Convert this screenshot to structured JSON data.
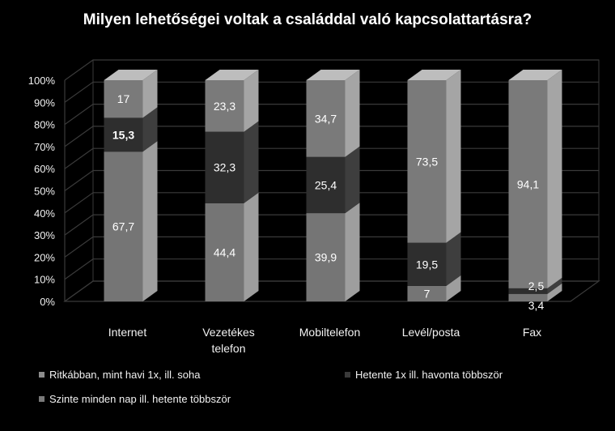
{
  "chart_data": {
    "type": "bar",
    "stacked": true,
    "percent_stacked": true,
    "three_d": true,
    "title": "Milyen lehetőségei voltak a családdal való kapcsolattartásra?",
    "categories": [
      "Internet",
      "Vezetékes telefon",
      "Mobiltelefon",
      "Levél/posta",
      "Fax"
    ],
    "category_lines": [
      [
        "Internet"
      ],
      [
        "Vezetékes",
        "telefon"
      ],
      [
        "Mobiltelefon"
      ],
      [
        "Levél/posta"
      ],
      [
        "Fax"
      ]
    ],
    "series": [
      {
        "name": "Szinte minden nap ill. hetente többször",
        "values": [
          67.7,
          44.4,
          39.9,
          7,
          3.4
        ],
        "labels": [
          "67,7",
          "44,4",
          "39,9",
          "7",
          "3,4"
        ],
        "color": "#757575"
      },
      {
        "name": "Hetente 1x ill. havonta többször",
        "values": [
          15.3,
          32.3,
          25.4,
          19.5,
          2.5
        ],
        "labels": [
          "15,3",
          "32,3",
          "25,4",
          "19,5",
          "2,5"
        ],
        "color": "#2e2e2e"
      },
      {
        "name": "Ritkábban, mint havi 1x,  ill. soha",
        "values": [
          17,
          23.3,
          34.7,
          73.5,
          94.1
        ],
        "labels": [
          "17",
          "23,3",
          "34,7",
          "73,5",
          "94,1"
        ],
        "color": "#7a7a7a"
      }
    ],
    "y_ticks": [
      "0%",
      "10%",
      "20%",
      "30%",
      "40%",
      "50%",
      "60%",
      "70%",
      "80%",
      "90%",
      "100%"
    ],
    "ylim": [
      0,
      100
    ],
    "grid": true,
    "legend_position": "bottom"
  }
}
